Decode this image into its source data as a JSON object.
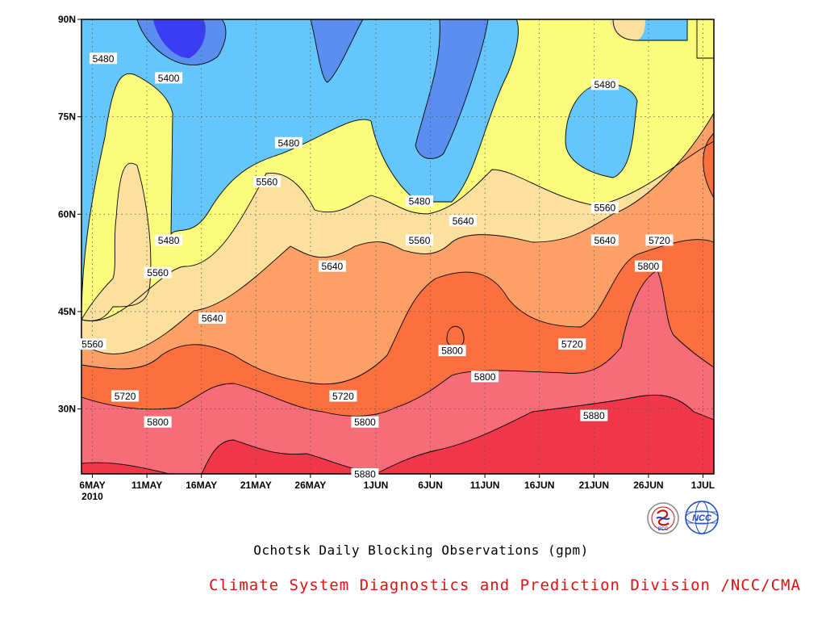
{
  "chart_data": {
    "type": "heatmap",
    "title": "Ochotsk Daily Blocking Observations (gpm)",
    "variable_unit": "gpm",
    "x_tick_labels": [
      "6MAY",
      "11MAY",
      "16MAY",
      "21MAY",
      "26MAY",
      "1JUN",
      "6JUN",
      "11JUN",
      "16JUN",
      "21JUN",
      "26JUN",
      "1JUL"
    ],
    "x_year_label": "2010",
    "x_range": [
      "2010-05-05",
      "2010-07-02"
    ],
    "y_tick_labels": [
      "30N",
      "45N",
      "60N",
      "75N",
      "90N"
    ],
    "ylim": [
      20,
      90
    ],
    "contour_levels": [
      5400,
      5480,
      5560,
      5640,
      5720,
      5800,
      5880
    ],
    "fill_colors": {
      "below_5400": "#3c3cf5",
      "5400_5480": "#5a8ff0",
      "5480_5560": "#64c6fb",
      "5560_5640": "#fcfc7c",
      "5640_5720": "#fce19e",
      "5720_5800": "#fca068",
      "5800_5880": "#fc7040",
      "5880_5960": "#f66c78",
      "above_5960": "#f0384a"
    },
    "contour_labels": [
      {
        "value": "5480",
        "date": "2010-05-07",
        "lat": 84
      },
      {
        "value": "5400",
        "date": "2010-05-13",
        "lat": 81
      },
      {
        "value": "5480",
        "date": "2010-05-24",
        "lat": 71
      },
      {
        "value": "5480",
        "date": "2010-06-22",
        "lat": 80
      },
      {
        "value": "5560",
        "date": "2010-05-22",
        "lat": 65
      },
      {
        "value": "5480",
        "date": "2010-06-05",
        "lat": 62
      },
      {
        "value": "5480",
        "date": "2010-05-13",
        "lat": 56
      },
      {
        "value": "5560",
        "date": "2010-06-22",
        "lat": 61
      },
      {
        "value": "5560",
        "date": "2010-06-05",
        "lat": 56
      },
      {
        "value": "5640",
        "date": "2010-06-09",
        "lat": 59
      },
      {
        "value": "5640",
        "date": "2010-06-22",
        "lat": 56
      },
      {
        "value": "5720",
        "date": "2010-06-27",
        "lat": 56
      },
      {
        "value": "5560",
        "date": "2010-05-12",
        "lat": 51
      },
      {
        "value": "5640",
        "date": "2010-05-28",
        "lat": 52
      },
      {
        "value": "5800",
        "date": "2010-06-26",
        "lat": 52
      },
      {
        "value": "5640",
        "date": "2010-05-17",
        "lat": 44
      },
      {
        "value": "5560",
        "date": "2010-05-06",
        "lat": 40
      },
      {
        "value": "5720",
        "date": "2010-06-19",
        "lat": 40
      },
      {
        "value": "5800",
        "date": "2010-06-08",
        "lat": 39
      },
      {
        "value": "5800",
        "date": "2010-06-11",
        "lat": 35
      },
      {
        "value": "5720",
        "date": "2010-05-09",
        "lat": 32
      },
      {
        "value": "5720",
        "date": "2010-05-29",
        "lat": 32
      },
      {
        "value": "5800",
        "date": "2010-05-12",
        "lat": 28
      },
      {
        "value": "5800",
        "date": "2010-05-31",
        "lat": 28
      },
      {
        "value": "5880",
        "date": "2010-06-21",
        "lat": 29
      },
      {
        "value": "5880",
        "date": "2010-05-31",
        "lat": 20
      }
    ]
  },
  "credit": "Climate System Diagnostics and Prediction Division /NCC/CMA",
  "logos": {
    "left_text": "BCC",
    "right_text": "NCC"
  }
}
